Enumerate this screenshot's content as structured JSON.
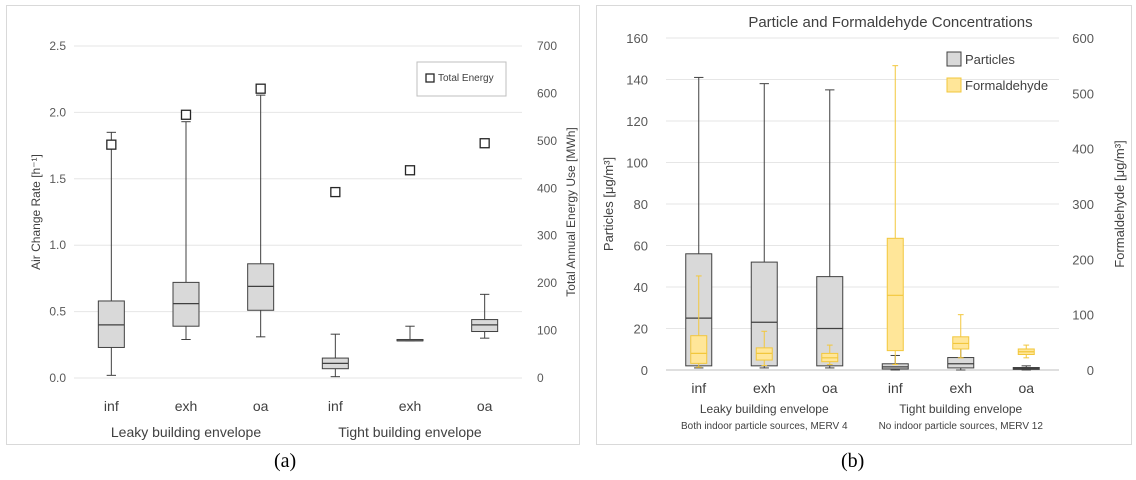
{
  "captions": {
    "a": "(a)",
    "b": "(b)"
  },
  "colors": {
    "box_gray": "#d9d9d9",
    "box_yellow": "#ffe699",
    "yellow_line": "#f2c73c",
    "edge": "#404040",
    "grid": "#e6e6e6"
  },
  "chart_data": [
    {
      "id": "a",
      "type": "box",
      "title": "",
      "categories": [
        "inf",
        "exh",
        "oa",
        "inf",
        "exh",
        "oa"
      ],
      "groups": [
        {
          "label": "Leaky building envelope"
        },
        {
          "label": "Tight building envelope"
        }
      ],
      "ylabel_left": "Air Change Rate [h⁻¹]",
      "ylabel_right": "Total Annual Energy Use [MWh]",
      "ylim_left": [
        0,
        2.5
      ],
      "yticks_left": [
        "0.0",
        "0.5",
        "1.0",
        "1.5",
        "2.0",
        "2.5"
      ],
      "ylim_right": [
        0,
        700
      ],
      "yticks_right": [
        "0",
        "100",
        "200",
        "300",
        "400",
        "500",
        "600",
        "700"
      ],
      "legend": {
        "label": "Total Energy",
        "position": "top-right"
      },
      "grid": true,
      "boxes": [
        {
          "category": "inf",
          "min": 0.02,
          "q1": 0.23,
          "median": 0.4,
          "q3": 0.58,
          "max": 1.85
        },
        {
          "category": "exh",
          "min": 0.29,
          "q1": 0.39,
          "median": 0.56,
          "q3": 0.72,
          "max": 1.93
        },
        {
          "category": "oa",
          "min": 0.31,
          "q1": 0.51,
          "median": 0.69,
          "q3": 0.86,
          "max": 2.13
        },
        {
          "category": "inf",
          "min": 0.01,
          "q1": 0.07,
          "median": 0.11,
          "q3": 0.15,
          "max": 0.33
        },
        {
          "category": "exh",
          "min": 0.28,
          "q1": 0.28,
          "median": 0.28,
          "q3": 0.29,
          "max": 0.39
        },
        {
          "category": "oa",
          "min": 0.3,
          "q1": 0.35,
          "median": 0.4,
          "q3": 0.44,
          "max": 0.63
        }
      ],
      "total_energy": [
        492,
        555,
        610,
        392,
        438,
        495
      ]
    },
    {
      "id": "b",
      "type": "box",
      "title": "Particle and Formaldehyde Concentrations",
      "categories": [
        "inf",
        "exh",
        "oa",
        "inf",
        "exh",
        "oa"
      ],
      "groups": [
        {
          "label": "Leaky building envelope",
          "sublabel": "Both indoor particle sources, MERV 4"
        },
        {
          "label": "Tight building envelope",
          "sublabel": "No indoor particle sources, MERV 12"
        }
      ],
      "ylabel_left": "Particles [μg/m³]",
      "ylabel_right": "Formaldehyde [μg/m³]",
      "ylim_left": [
        0,
        160
      ],
      "yticks_left": [
        "0",
        "20",
        "40",
        "60",
        "80",
        "100",
        "120",
        "140",
        "160"
      ],
      "ylim_right": [
        0,
        600
      ],
      "yticks_right": [
        "0",
        "100",
        "200",
        "300",
        "400",
        "500",
        "600"
      ],
      "legend": {
        "position": "top-right"
      },
      "grid": true,
      "series": [
        {
          "name": "Particles",
          "boxes": [
            {
              "category": "inf",
              "min": 1,
              "q1": 2,
              "median": 25,
              "q3": 56,
              "max": 141
            },
            {
              "category": "exh",
              "min": 1,
              "q1": 2,
              "median": 23,
              "q3": 52,
              "max": 138
            },
            {
              "category": "oa",
              "min": 1,
              "q1": 2,
              "median": 20,
              "q3": 45,
              "max": 135
            },
            {
              "category": "inf",
              "min": 0,
              "q1": 0.5,
              "median": 1.5,
              "q3": 3,
              "max": 7
            },
            {
              "category": "exh",
              "min": 0,
              "q1": 1,
              "median": 3,
              "q3": 6,
              "max": 12
            },
            {
              "category": "oa",
              "min": 0,
              "q1": 0.3,
              "median": 0.7,
              "q3": 1.2,
              "max": 2
            }
          ]
        },
        {
          "name": "Formaldehyde",
          "boxes": [
            {
              "category": "inf",
              "min": 5,
              "q1": 12,
              "median": 30,
              "q3": 62,
              "max": 170
            },
            {
              "category": "exh",
              "min": 8,
              "q1": 18,
              "median": 30,
              "q3": 40,
              "max": 70
            },
            {
              "category": "oa",
              "min": 10,
              "q1": 15,
              "median": 22,
              "q3": 30,
              "max": 45
            },
            {
              "category": "inf",
              "min": 10,
              "q1": 35,
              "median": 135,
              "q3": 238,
              "max": 550
            },
            {
              "category": "exh",
              "min": 22,
              "q1": 38,
              "median": 48,
              "q3": 60,
              "max": 100
            },
            {
              "category": "oa",
              "min": 22,
              "q1": 28,
              "median": 33,
              "q3": 38,
              "max": 45
            }
          ]
        }
      ]
    }
  ]
}
